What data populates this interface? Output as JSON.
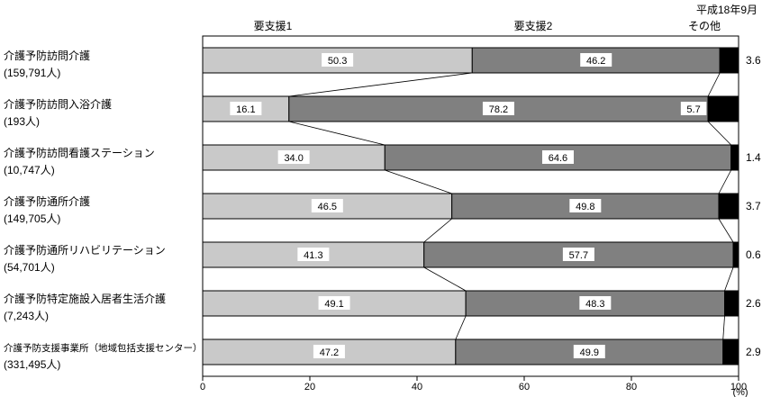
{
  "header": {
    "date": "平成18年9月"
  },
  "chart_data": {
    "type": "bar",
    "subtype": "horizontal-stacked",
    "series": [
      "要支援1",
      "要支援2",
      "その他"
    ],
    "colors": [
      "#c9c9c9",
      "#808080",
      "#000000"
    ],
    "x_axis": {
      "ticks": [
        "0",
        "20",
        "40",
        "60",
        "80",
        "100"
      ],
      "max": 100,
      "unit": "(%)"
    },
    "rows": [
      {
        "label": "介護予防訪問介護",
        "sublabel": "(159,791人)",
        "values": [
          "50.3",
          "46.2",
          "3.6"
        ]
      },
      {
        "label": "介護予防訪問入浴介護",
        "sublabel": "(193人)",
        "values": [
          "16.1",
          "78.2",
          "5.7"
        ]
      },
      {
        "label": "介護予防訪問看護ステーション",
        "sublabel": "(10,747人)",
        "values": [
          "34.0",
          "64.6",
          "1.4"
        ]
      },
      {
        "label": "介護予防通所介護",
        "sublabel": "(149,705人)",
        "values": [
          "46.5",
          "49.8",
          "3.7"
        ]
      },
      {
        "label": "介護予防通所リハビリテーション",
        "sublabel": "(54,701人)",
        "values": [
          "41.3",
          "57.7",
          "0.6"
        ]
      },
      {
        "label": "介護予防特定施設入居者生活介護",
        "sublabel": "(7,243人)",
        "values": [
          "49.1",
          "48.3",
          "2.6"
        ]
      },
      {
        "label": "介護予防支援事業所（地域包括支援センター）",
        "sublabel": "(331,495人)",
        "values": [
          "47.2",
          "49.9",
          "2.9"
        ]
      }
    ]
  }
}
